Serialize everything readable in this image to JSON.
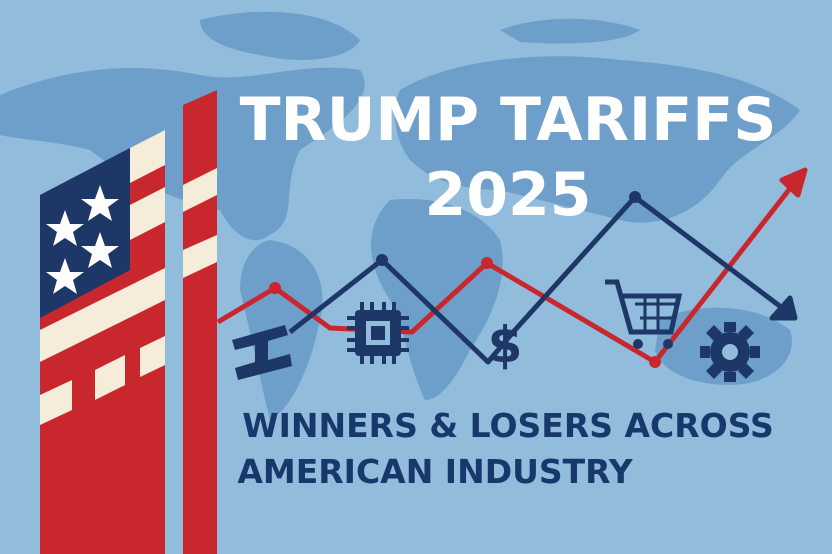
{
  "title": {
    "line1": "TRUMP TARIFFS",
    "line2": "2025"
  },
  "subtitle": {
    "line1": "WINNERS & LOSERS ACROSS",
    "line2": "AMERICAN INDUSTRY"
  },
  "icons": {
    "dollar": "$"
  }
}
